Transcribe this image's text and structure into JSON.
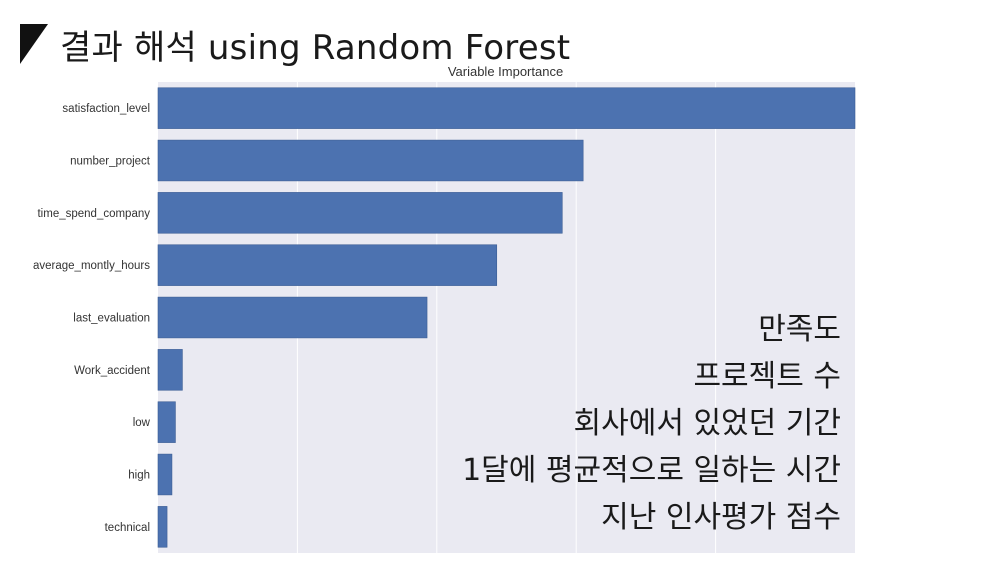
{
  "slide": {
    "title": "결과 해석 using Random Forest",
    "overlay_lines": [
      "만족도",
      "프로젝트 수",
      "회사에서 있었던 기간",
      "1달에 평균적으로 일하는 시간",
      "지난 인사평가 점수"
    ]
  },
  "colors": {
    "bar": "#4C72B0",
    "plot_bg": "#EAEAF2",
    "grid": "#FFFFFF"
  },
  "chart_data": {
    "type": "bar",
    "orientation": "horizontal",
    "title": "Variable Importance",
    "xlabel": "",
    "ylabel": "",
    "categories": [
      "satisfaction_level",
      "number_project",
      "time_spend_company",
      "average_montly_hours",
      "last_evaluation",
      "Work_accident",
      "low",
      "high",
      "technical"
    ],
    "values": [
      100,
      61,
      58,
      48.6,
      38.6,
      3.5,
      2.5,
      2.0,
      1.3
    ],
    "xlim": [
      0,
      100
    ],
    "grid": true
  }
}
